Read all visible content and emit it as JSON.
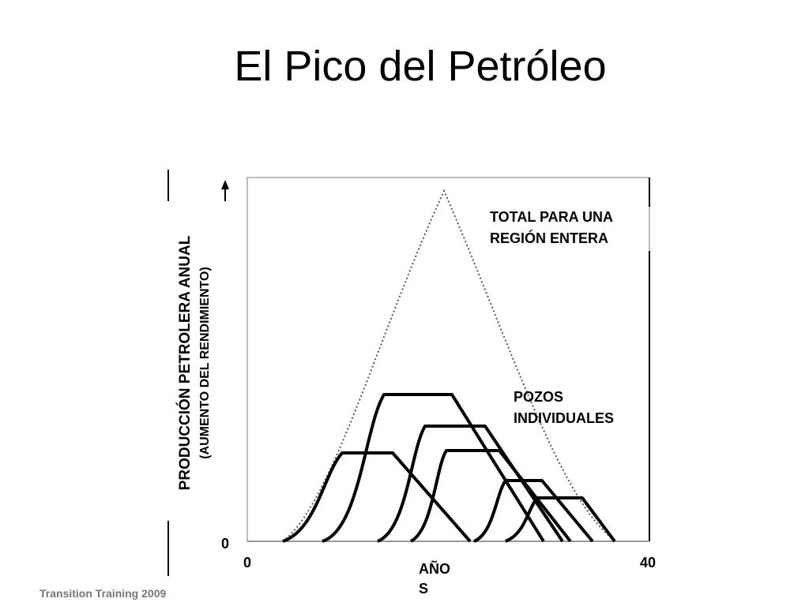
{
  "title": "El Pico del Petróleo",
  "footer": "Transition Training 2009",
  "diagram": {
    "y_label": "PRODUCCIÓN PETROLERA ANUAL",
    "y_sublabel": "(AUMENTO DEL RENDIMIENTO)",
    "y_origin": 0,
    "x_start": 0,
    "x_end": 40,
    "x_label": [
      "AÑO",
      "S"
    ],
    "total_label": [
      "TOTAL PARA UNA",
      "REGIÓN ENTERA"
    ],
    "wells_label": [
      "POZOS",
      "INDIVIDUALES"
    ]
  }
}
